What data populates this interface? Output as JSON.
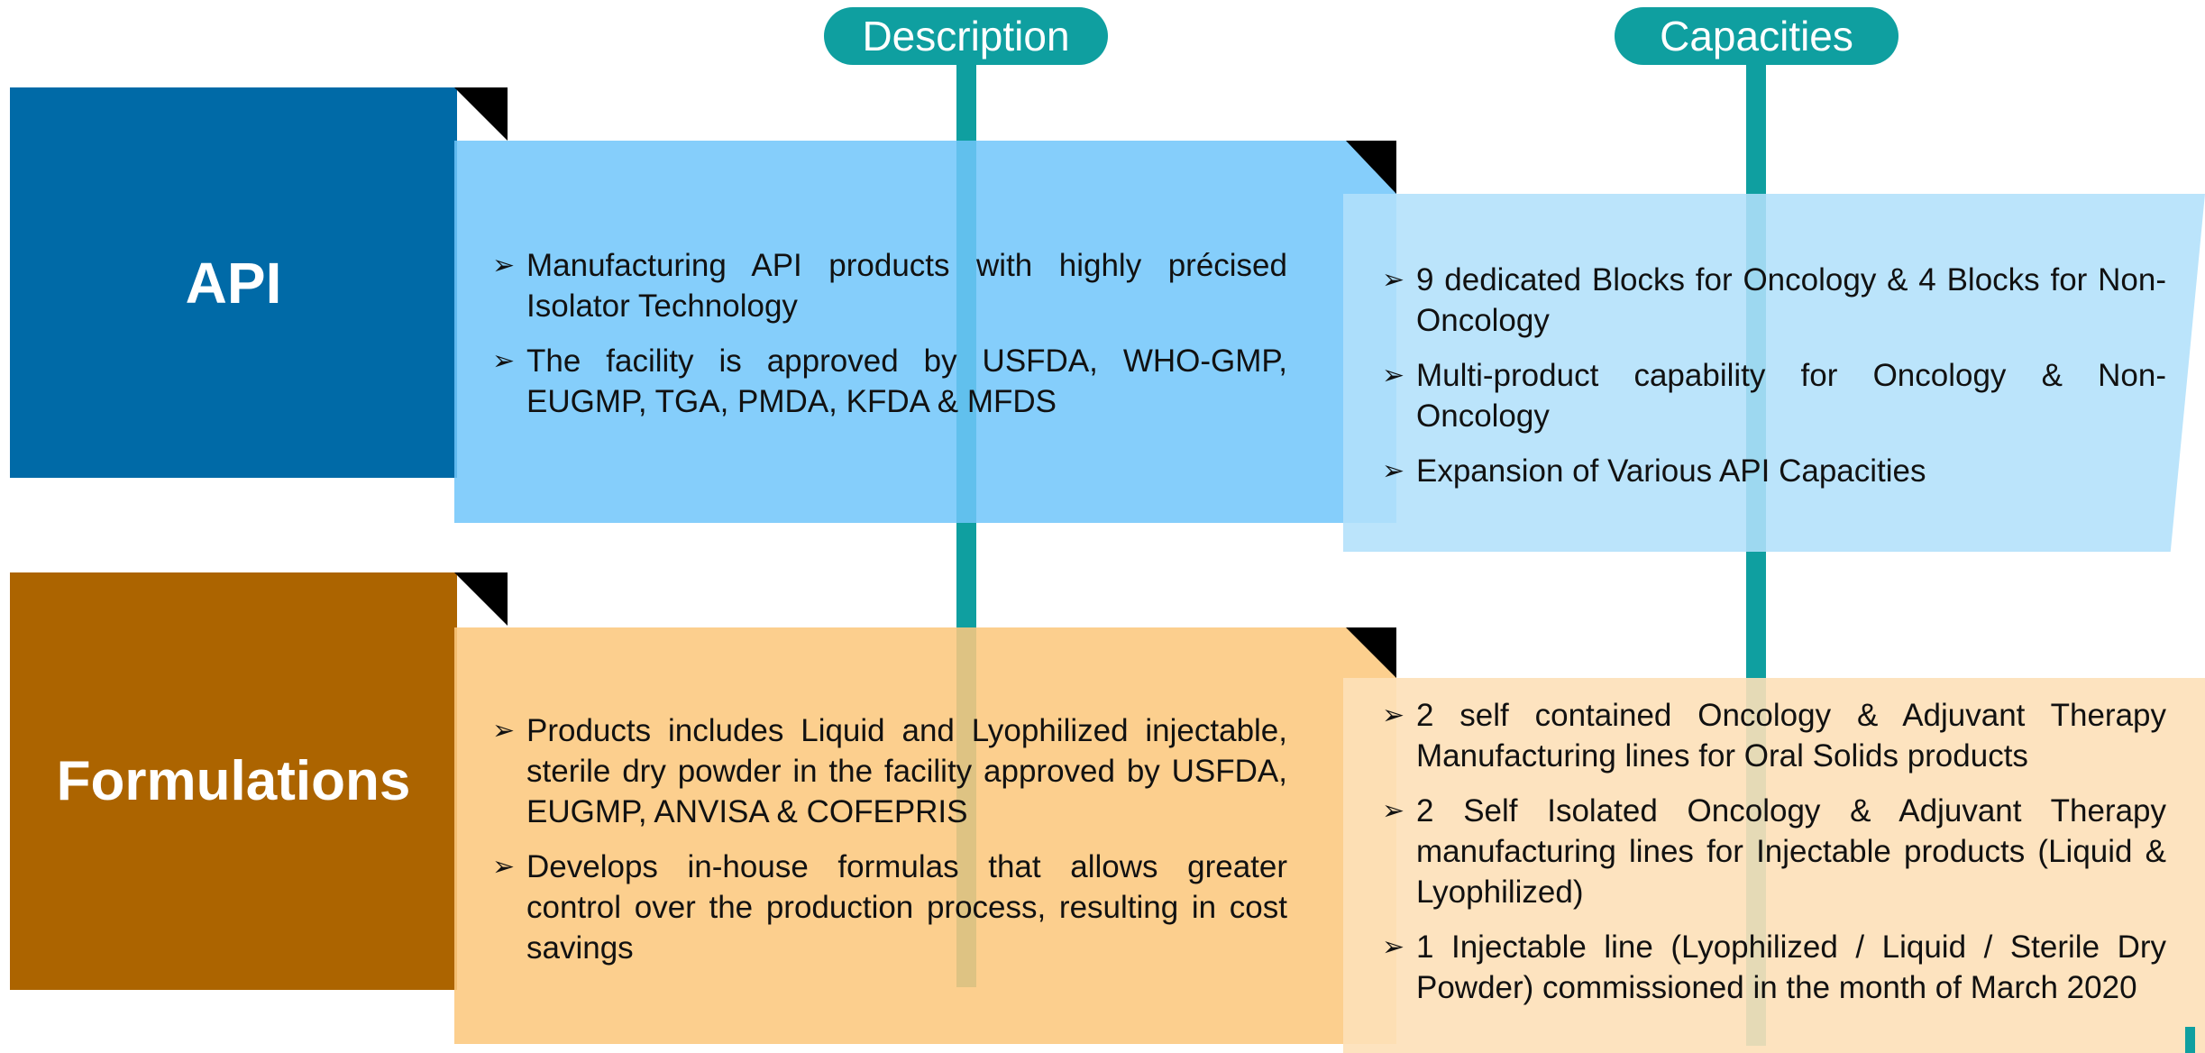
{
  "columns": [
    "Description",
    "Capacities"
  ],
  "rows": [
    {
      "label": "API",
      "description": [
        "Manufacturing API products with highly  précised Isolator Technology",
        "The facility is approved by USFDA, WHO-GMP, EUGMP, TGA, PMDA, KFDA & MFDS"
      ],
      "capacities": [
        "9 dedicated Blocks for Oncology & 4 Blocks  for Non-Oncology",
        "Multi-product capability for Oncology & Non-Oncology",
        "Expansion of Various API Capacities"
      ]
    },
    {
      "label": "Formulations",
      "description": [
        "Products includes Liquid and Lyophilized injectable, sterile dry powder in the facility approved by USFDA, EUGMP, ANVISA & COFEPRIS",
        "Develops in-house formulas that allows greater control over the production process, resulting in cost savings"
      ],
      "capacities": [
        "2 self contained Oncology & Adjuvant Therapy Manufacturing lines for Oral Solids products",
        "2 Self Isolated Oncology & Adjuvant Therapy manufacturing lines for Injectable products (Liquid & Lyophilized)",
        "1 Injectable line (Lyophilized / Liquid / Sterile Dry Powder) commissioned  in the month of March 2020"
      ]
    }
  ]
}
